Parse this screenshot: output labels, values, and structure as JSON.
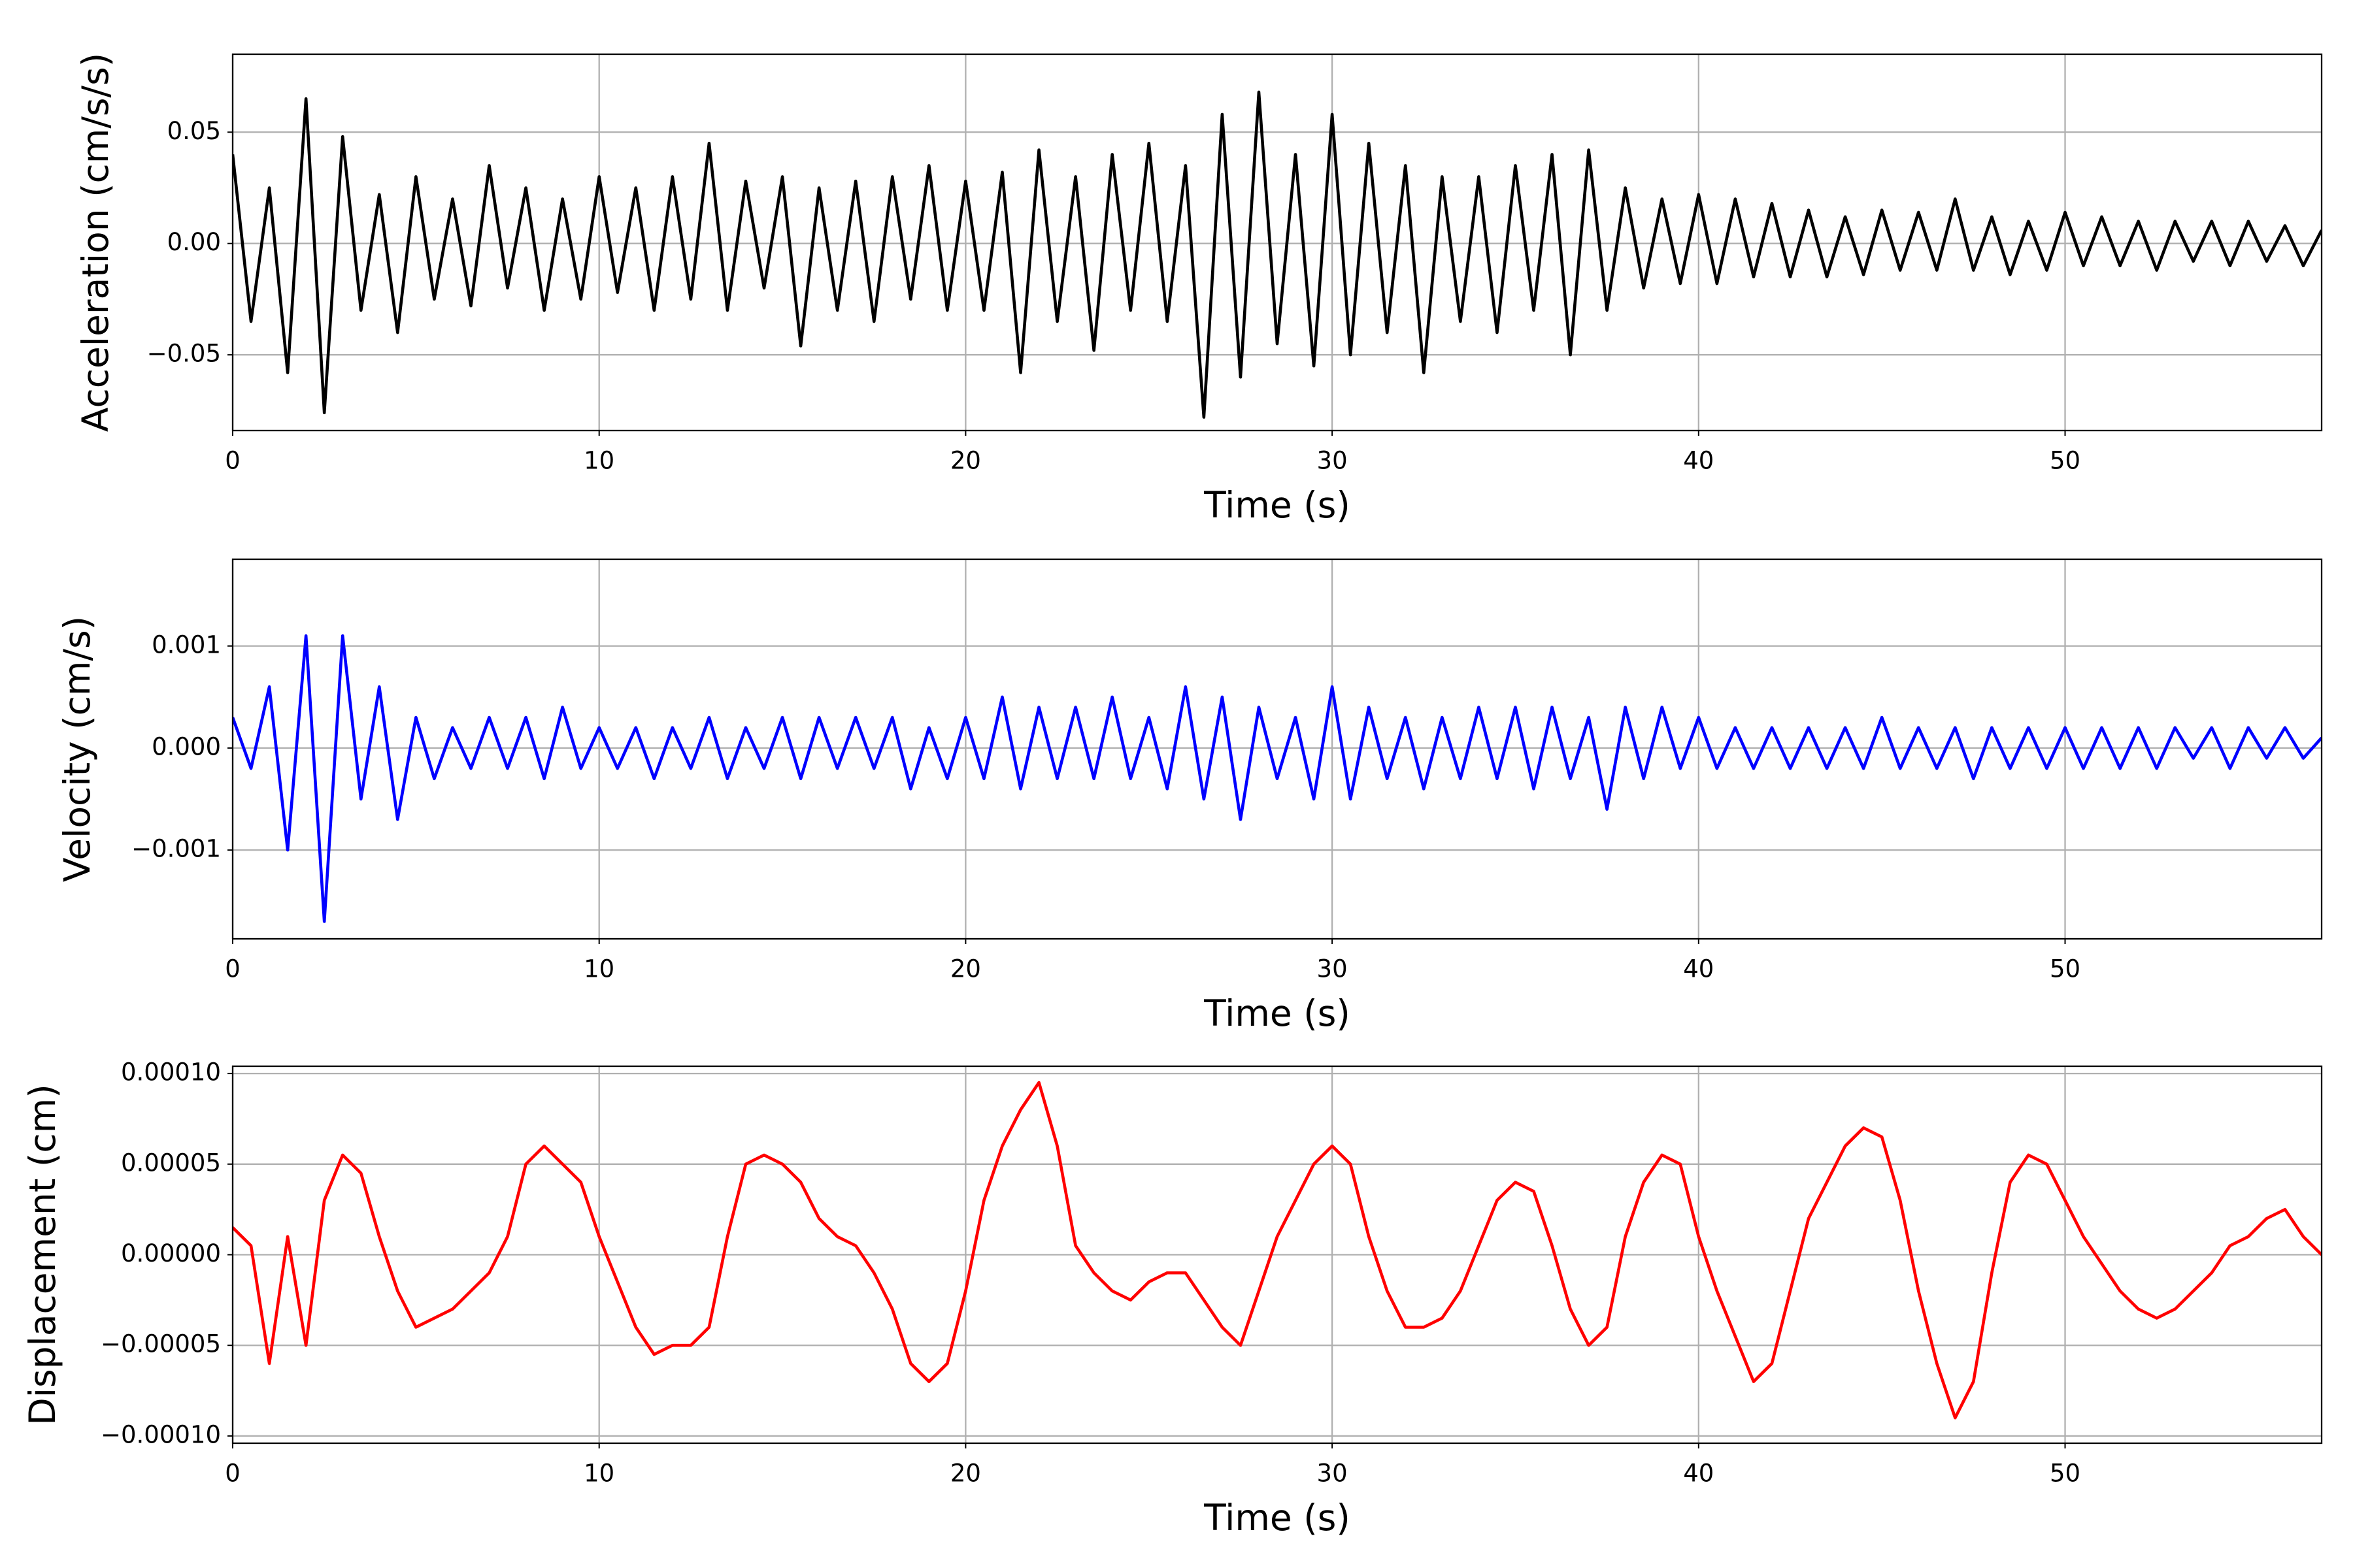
{
  "chart_data": [
    {
      "type": "line",
      "xlabel": "Time (s)",
      "ylabel": "Acceleration (cm/s/s)",
      "color": "#000000",
      "grid": true,
      "xlim": [
        0,
        57
      ],
      "xticks": [
        0,
        10,
        20,
        30,
        40,
        50
      ],
      "ylim": [
        -0.084,
        0.085
      ],
      "yticks": [
        {
          "value": -0.05,
          "label": "−0.05"
        },
        {
          "value": 0,
          "label": "0.00"
        },
        0.05
      ],
      "x": [
        0,
        0.5,
        1,
        1.5,
        2,
        2.5,
        3,
        3.5,
        4,
        4.5,
        5,
        5.5,
        6,
        6.5,
        7,
        7.5,
        8,
        8.5,
        9,
        9.5,
        10,
        10.5,
        11,
        11.5,
        12,
        12.5,
        13,
        13.5,
        14,
        14.5,
        15,
        15.5,
        16,
        16.5,
        17,
        17.5,
        18,
        18.5,
        19,
        19.5,
        20,
        20.5,
        21,
        21.5,
        22,
        22.5,
        23,
        23.5,
        24,
        24.5,
        25,
        25.5,
        26,
        26.5,
        27,
        27.5,
        28,
        28.5,
        29,
        29.5,
        30,
        30.5,
        31,
        31.5,
        32,
        32.5,
        33,
        33.5,
        34,
        34.5,
        35,
        35.5,
        36,
        36.5,
        37,
        37.5,
        38,
        38.5,
        39,
        39.5,
        40,
        40.5,
        41,
        41.5,
        42,
        42.5,
        43,
        43.5,
        44,
        44.5,
        45,
        45.5,
        46,
        46.5,
        47,
        47.5,
        48,
        48.5,
        49,
        49.5,
        50,
        50.5,
        51,
        51.5,
        52,
        52.5,
        53,
        53.5,
        54,
        54.5,
        55,
        55.5,
        56,
        56.5,
        57
      ],
      "values": [
        0.04,
        -0.035,
        0.025,
        -0.058,
        0.065,
        -0.076,
        0.048,
        -0.03,
        0.022,
        -0.04,
        0.03,
        -0.025,
        0.02,
        -0.028,
        0.035,
        -0.02,
        0.025,
        -0.03,
        0.02,
        -0.025,
        0.03,
        -0.022,
        0.025,
        -0.03,
        0.03,
        -0.025,
        0.045,
        -0.03,
        0.028,
        -0.02,
        0.03,
        -0.046,
        0.025,
        -0.03,
        0.028,
        -0.035,
        0.03,
        -0.025,
        0.035,
        -0.03,
        0.028,
        -0.03,
        0.032,
        -0.058,
        0.042,
        -0.035,
        0.03,
        -0.048,
        0.04,
        -0.03,
        0.045,
        -0.035,
        0.035,
        -0.078,
        0.058,
        -0.06,
        0.068,
        -0.045,
        0.04,
        -0.055,
        0.058,
        -0.05,
        0.045,
        -0.04,
        0.035,
        -0.058,
        0.03,
        -0.035,
        0.03,
        -0.04,
        0.035,
        -0.03,
        0.04,
        -0.05,
        0.042,
        -0.03,
        0.025,
        -0.02,
        0.02,
        -0.018,
        0.022,
        -0.018,
        0.02,
        -0.015,
        0.018,
        -0.015,
        0.015,
        -0.015,
        0.012,
        -0.014,
        0.015,
        -0.012,
        0.014,
        -0.012,
        0.02,
        -0.012,
        0.012,
        -0.014,
        0.01,
        -0.012,
        0.014,
        -0.01,
        0.012,
        -0.01,
        0.01,
        -0.012,
        0.01,
        -0.008,
        0.01,
        -0.01,
        0.01,
        -0.008,
        0.008,
        -0.01,
        0.006
      ]
    },
    {
      "type": "line",
      "xlabel": "Time (s)",
      "ylabel": "Velocity (cm/s)",
      "color": "#0000ff",
      "grid": true,
      "xlim": [
        0,
        57
      ],
      "xticks": [
        0,
        10,
        20,
        30,
        40,
        50
      ],
      "ylim": [
        -0.00187,
        0.00185
      ],
      "yticks": [
        {
          "value": -0.001,
          "label": "−0.001"
        },
        {
          "value": 0,
          "label": "0.000"
        },
        0.001
      ],
      "x": [
        0,
        0.5,
        1,
        1.5,
        2,
        2.5,
        3,
        3.5,
        4,
        4.5,
        5,
        5.5,
        6,
        6.5,
        7,
        7.5,
        8,
        8.5,
        9,
        9.5,
        10,
        10.5,
        11,
        11.5,
        12,
        12.5,
        13,
        13.5,
        14,
        14.5,
        15,
        15.5,
        16,
        16.5,
        17,
        17.5,
        18,
        18.5,
        19,
        19.5,
        20,
        20.5,
        21,
        21.5,
        22,
        22.5,
        23,
        23.5,
        24,
        24.5,
        25,
        25.5,
        26,
        26.5,
        27,
        27.5,
        28,
        28.5,
        29,
        29.5,
        30,
        30.5,
        31,
        31.5,
        32,
        32.5,
        33,
        33.5,
        34,
        34.5,
        35,
        35.5,
        36,
        36.5,
        37,
        37.5,
        38,
        38.5,
        39,
        39.5,
        40,
        40.5,
        41,
        41.5,
        42,
        42.5,
        43,
        43.5,
        44,
        44.5,
        45,
        45.5,
        46,
        46.5,
        47,
        47.5,
        48,
        48.5,
        49,
        49.5,
        50,
        50.5,
        51,
        51.5,
        52,
        52.5,
        53,
        53.5,
        54,
        54.5,
        55,
        55.5,
        56,
        56.5,
        57
      ],
      "values": [
        0.0003,
        -0.0002,
        0.0006,
        -0.001,
        0.0011,
        -0.0017,
        0.0011,
        -0.0005,
        0.0006,
        -0.0007,
        0.0003,
        -0.0003,
        0.0002,
        -0.0002,
        0.0003,
        -0.0002,
        0.0003,
        -0.0003,
        0.0004,
        -0.0002,
        0.0002,
        -0.0002,
        0.0002,
        -0.0003,
        0.0002,
        -0.0002,
        0.0003,
        -0.0003,
        0.0002,
        -0.0002,
        0.0003,
        -0.0003,
        0.0003,
        -0.0002,
        0.0003,
        -0.0002,
        0.0003,
        -0.0004,
        0.0002,
        -0.0003,
        0.0003,
        -0.0003,
        0.0005,
        -0.0004,
        0.0004,
        -0.0003,
        0.0004,
        -0.0003,
        0.0005,
        -0.0003,
        0.0003,
        -0.0004,
        0.0006,
        -0.0005,
        0.0005,
        -0.0007,
        0.0004,
        -0.0003,
        0.0003,
        -0.0005,
        0.0006,
        -0.0005,
        0.0004,
        -0.0003,
        0.0003,
        -0.0004,
        0.0003,
        -0.0003,
        0.0004,
        -0.0003,
        0.0004,
        -0.0004,
        0.0004,
        -0.0003,
        0.0003,
        -0.0006,
        0.0004,
        -0.0003,
        0.0004,
        -0.0002,
        0.0003,
        -0.0002,
        0.0002,
        -0.0002,
        0.0002,
        -0.0002,
        0.0002,
        -0.0002,
        0.0002,
        -0.0002,
        0.0003,
        -0.0002,
        0.0002,
        -0.0002,
        0.0002,
        -0.0003,
        0.0002,
        -0.0002,
        0.0002,
        -0.0002,
        0.0002,
        -0.0002,
        0.0002,
        -0.0002,
        0.0002,
        -0.0002,
        0.0002,
        -0.0001,
        0.0002,
        -0.0002,
        0.0002,
        -0.0001,
        0.0002,
        -0.0001,
        0.0001
      ]
    },
    {
      "type": "line",
      "xlabel": "Time (s)",
      "ylabel": "Displacement (cm)",
      "color": "#ff0000",
      "grid": true,
      "xlim": [
        0,
        57
      ],
      "xticks": [
        0,
        10,
        20,
        30,
        40,
        50
      ],
      "ylim": [
        -0.000104,
        0.000104
      ],
      "yticks": [
        {
          "value": -0.0001,
          "label": "−0.00010"
        },
        {
          "value": -5e-05,
          "label": "−0.00005"
        },
        {
          "value": 0,
          "label": "0.00000"
        },
        5e-05,
        {
          "value": 0.0001,
          "label": "0.00010"
        }
      ],
      "x": [
        0,
        0.5,
        1,
        1.5,
        2,
        2.5,
        3,
        3.5,
        4,
        4.5,
        5,
        5.5,
        6,
        6.5,
        7,
        7.5,
        8,
        8.5,
        9,
        9.5,
        10,
        10.5,
        11,
        11.5,
        12,
        12.5,
        13,
        13.5,
        14,
        14.5,
        15,
        15.5,
        16,
        16.5,
        17,
        17.5,
        18,
        18.5,
        19,
        19.5,
        20,
        20.5,
        21,
        21.5,
        22,
        22.5,
        23,
        23.5,
        24,
        24.5,
        25,
        25.5,
        26,
        26.5,
        27,
        27.5,
        28,
        28.5,
        29,
        29.5,
        30,
        30.5,
        31,
        31.5,
        32,
        32.5,
        33,
        33.5,
        34,
        34.5,
        35,
        35.5,
        36,
        36.5,
        37,
        37.5,
        38,
        38.5,
        39,
        39.5,
        40,
        40.5,
        41,
        41.5,
        42,
        42.5,
        43,
        43.5,
        44,
        44.5,
        45,
        45.5,
        46,
        46.5,
        47,
        47.5,
        48,
        48.5,
        49,
        49.5,
        50,
        50.5,
        51,
        51.5,
        52,
        52.5,
        53,
        53.5,
        54,
        54.5,
        55,
        55.5,
        56,
        56.5,
        57
      ],
      "values": [
        1.5e-05,
        5e-06,
        -6e-05,
        1e-05,
        -5e-05,
        3e-05,
        5.5e-05,
        4.5e-05,
        1e-05,
        -2e-05,
        -4e-05,
        -3.5e-05,
        -3e-05,
        -2e-05,
        -1e-05,
        1e-05,
        5e-05,
        6e-05,
        5e-05,
        4e-05,
        1e-05,
        -1.5e-05,
        -4e-05,
        -5.5e-05,
        -5e-05,
        -5e-05,
        -4e-05,
        1e-05,
        5e-05,
        5.5e-05,
        5e-05,
        4e-05,
        2e-05,
        1e-05,
        5e-06,
        -1e-05,
        -3e-05,
        -6e-05,
        -7e-05,
        -6e-05,
        -2e-05,
        3e-05,
        6e-05,
        8e-05,
        9.5e-05,
        6e-05,
        5e-06,
        -1e-05,
        -2e-05,
        -2.5e-05,
        -1.5e-05,
        -1e-05,
        -1e-05,
        -2.5e-05,
        -4e-05,
        -5e-05,
        -2e-05,
        1e-05,
        3e-05,
        5e-05,
        6e-05,
        5e-05,
        1e-05,
        -2e-05,
        -4e-05,
        -4e-05,
        -3.5e-05,
        -2e-05,
        5e-06,
        3e-05,
        4e-05,
        3.5e-05,
        5e-06,
        -3e-05,
        -5e-05,
        -4e-05,
        1e-05,
        4e-05,
        5.5e-05,
        5e-05,
        1e-05,
        -2e-05,
        -4.5e-05,
        -7e-05,
        -6e-05,
        -2e-05,
        2e-05,
        4e-05,
        6e-05,
        7e-05,
        6.5e-05,
        3e-05,
        -2e-05,
        -6e-05,
        -9e-05,
        -7e-05,
        -1e-05,
        4e-05,
        5.5e-05,
        5e-05,
        3e-05,
        1e-05,
        -5e-06,
        -2e-05,
        -3e-05,
        -3.5e-05,
        -3e-05,
        -2e-05,
        -1e-05,
        5e-06,
        1e-05,
        2e-05,
        2.5e-05,
        1e-05,
        0
      ]
    }
  ]
}
